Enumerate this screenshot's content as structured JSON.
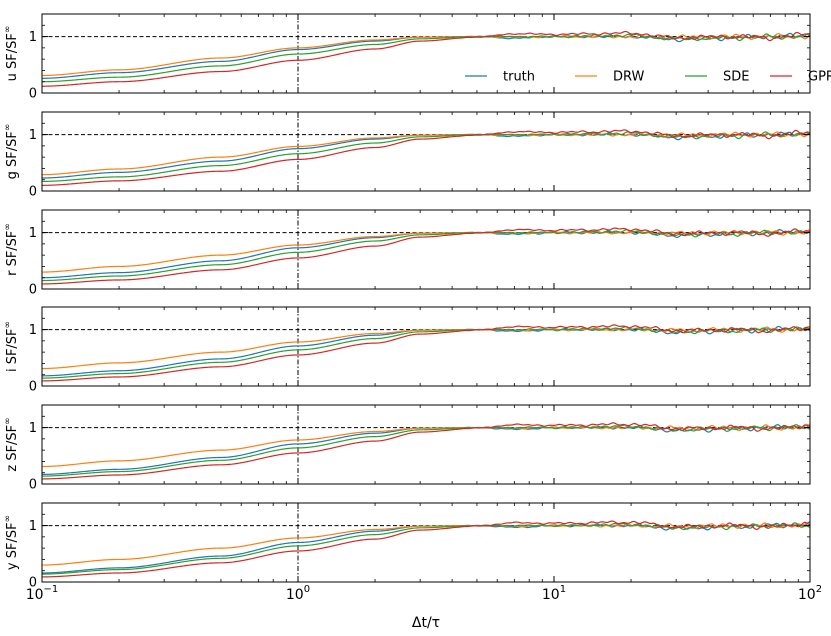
{
  "figure": {
    "xlabel": "Δt/τ",
    "x_tick_labels": [
      {
        "base": "10",
        "exp": "−1"
      },
      {
        "base": "10",
        "exp": "0"
      },
      {
        "base": "10",
        "exp": "1"
      },
      {
        "base": "10",
        "exp": "2"
      }
    ],
    "y_tick_labels": [
      "0",
      "1"
    ],
    "legend": [
      "truth",
      "DRW",
      "SDE",
      "GPR"
    ]
  },
  "chart_data": {
    "type": "line",
    "x_scale": "log",
    "xlim": [
      0.1,
      100
    ],
    "ylim": [
      0,
      1.4
    ],
    "reference_lines": {
      "horizontal_y": 1,
      "vertical_x": 1
    },
    "xlabel": "Δt/τ",
    "legend_location": "right",
    "colors": {
      "truth": "#1f77b4",
      "DRW": "#ff7f0e",
      "SDE": "#2ca02c",
      "GPR": "#d62728"
    },
    "panels": [
      {
        "band": "u",
        "ylabel": "u SF/SF∞",
        "series": [
          {
            "name": "truth",
            "x": [
              0.1,
              0.2,
              0.5,
              1,
              2,
              3,
              5,
              7,
              10,
              20,
              30,
              50,
              70,
              100
            ],
            "y": [
              0.26,
              0.36,
              0.56,
              0.77,
              0.92,
              0.99,
              1.0,
              0.97,
              1.0,
              1.0,
              0.95,
              0.98,
              1.0,
              1.02
            ]
          },
          {
            "name": "DRW",
            "x": [
              0.1,
              0.2,
              0.5,
              1,
              2,
              3,
              5,
              7,
              10,
              20,
              30,
              50,
              70,
              100
            ],
            "y": [
              0.31,
              0.41,
              0.62,
              0.8,
              0.94,
              0.99,
              1.0,
              0.99,
              1.0,
              1.0,
              0.99,
              1.0,
              1.0,
              1.0
            ]
          },
          {
            "name": "SDE",
            "x": [
              0.1,
              0.2,
              0.5,
              1,
              2,
              3,
              5,
              7,
              10,
              20,
              30,
              50,
              70,
              100
            ],
            "y": [
              0.2,
              0.28,
              0.48,
              0.69,
              0.86,
              0.96,
              1.0,
              1.0,
              1.0,
              1.02,
              0.96,
              0.98,
              1.0,
              1.0
            ]
          },
          {
            "name": "GPR",
            "x": [
              0.1,
              0.2,
              0.5,
              1,
              2,
              3,
              5,
              7,
              10,
              20,
              30,
              50,
              70,
              100
            ],
            "y": [
              0.12,
              0.2,
              0.38,
              0.58,
              0.78,
              0.92,
              0.99,
              1.05,
              1.04,
              1.06,
              0.98,
              1.0,
              0.98,
              1.04
            ]
          }
        ]
      },
      {
        "band": "g",
        "ylabel": "g SF/SF∞",
        "series": [
          {
            "name": "truth",
            "x": [
              0.1,
              0.2,
              0.5,
              1,
              2,
              3,
              5,
              7,
              10,
              20,
              30,
              50,
              70,
              100
            ],
            "y": [
              0.23,
              0.33,
              0.53,
              0.75,
              0.92,
              0.99,
              1.0,
              0.97,
              1.0,
              1.0,
              0.95,
              0.98,
              1.0,
              1.02
            ]
          },
          {
            "name": "DRW",
            "x": [
              0.1,
              0.2,
              0.5,
              1,
              2,
              3,
              5,
              7,
              10,
              20,
              30,
              50,
              70,
              100
            ],
            "y": [
              0.29,
              0.39,
              0.6,
              0.79,
              0.94,
              0.99,
              1.0,
              0.99,
              1.0,
              1.0,
              0.99,
              1.0,
              1.0,
              1.0
            ]
          },
          {
            "name": "SDE",
            "x": [
              0.1,
              0.2,
              0.5,
              1,
              2,
              3,
              5,
              7,
              10,
              20,
              30,
              50,
              70,
              100
            ],
            "y": [
              0.17,
              0.25,
              0.45,
              0.66,
              0.85,
              0.96,
              1.0,
              1.0,
              1.0,
              1.02,
              0.96,
              0.98,
              1.0,
              1.0
            ]
          },
          {
            "name": "GPR",
            "x": [
              0.1,
              0.2,
              0.5,
              1,
              2,
              3,
              5,
              7,
              10,
              20,
              30,
              50,
              70,
              100
            ],
            "y": [
              0.1,
              0.18,
              0.35,
              0.56,
              0.77,
              0.92,
              0.99,
              1.05,
              1.04,
              1.06,
              0.98,
              1.0,
              0.98,
              1.04
            ]
          }
        ]
      },
      {
        "band": "r",
        "ylabel": "r SF/SF∞",
        "series": [
          {
            "name": "truth",
            "x": [
              0.1,
              0.2,
              0.5,
              1,
              2,
              3,
              5,
              7,
              10,
              20,
              30,
              50,
              70,
              100
            ],
            "y": [
              0.2,
              0.29,
              0.5,
              0.73,
              0.91,
              0.99,
              1.0,
              0.97,
              1.0,
              1.0,
              0.95,
              0.98,
              1.0,
              1.02
            ]
          },
          {
            "name": "DRW",
            "x": [
              0.1,
              0.2,
              0.5,
              1,
              2,
              3,
              5,
              7,
              10,
              20,
              30,
              50,
              70,
              100
            ],
            "y": [
              0.3,
              0.4,
              0.6,
              0.78,
              0.93,
              0.99,
              1.0,
              0.99,
              1.0,
              1.0,
              0.99,
              1.0,
              1.0,
              1.0
            ]
          },
          {
            "name": "SDE",
            "x": [
              0.1,
              0.2,
              0.5,
              1,
              2,
              3,
              5,
              7,
              10,
              20,
              30,
              50,
              70,
              100
            ],
            "y": [
              0.15,
              0.23,
              0.43,
              0.65,
              0.85,
              0.96,
              1.0,
              1.0,
              1.0,
              1.02,
              0.96,
              0.98,
              1.0,
              1.0
            ]
          },
          {
            "name": "GPR",
            "x": [
              0.1,
              0.2,
              0.5,
              1,
              2,
              3,
              5,
              7,
              10,
              20,
              30,
              50,
              70,
              100
            ],
            "y": [
              0.09,
              0.16,
              0.34,
              0.55,
              0.76,
              0.92,
              0.99,
              1.05,
              1.04,
              1.06,
              0.98,
              1.0,
              0.98,
              1.04
            ]
          }
        ]
      },
      {
        "band": "i",
        "ylabel": "i SF/SF∞",
        "series": [
          {
            "name": "truth",
            "x": [
              0.1,
              0.2,
              0.5,
              1,
              2,
              3,
              5,
              7,
              10,
              20,
              30,
              50,
              70,
              100
            ],
            "y": [
              0.18,
              0.27,
              0.48,
              0.71,
              0.9,
              0.99,
              1.0,
              0.97,
              1.0,
              1.0,
              0.95,
              0.98,
              1.0,
              1.02
            ]
          },
          {
            "name": "DRW",
            "x": [
              0.1,
              0.2,
              0.5,
              1,
              2,
              3,
              5,
              7,
              10,
              20,
              30,
              50,
              70,
              100
            ],
            "y": [
              0.31,
              0.41,
              0.6,
              0.78,
              0.93,
              0.99,
              1.0,
              0.99,
              1.0,
              1.0,
              0.99,
              1.0,
              1.0,
              1.0
            ]
          },
          {
            "name": "SDE",
            "x": [
              0.1,
              0.2,
              0.5,
              1,
              2,
              3,
              5,
              7,
              10,
              20,
              30,
              50,
              70,
              100
            ],
            "y": [
              0.14,
              0.22,
              0.42,
              0.64,
              0.84,
              0.96,
              1.0,
              1.0,
              1.0,
              1.02,
              0.96,
              0.98,
              1.0,
              1.0
            ]
          },
          {
            "name": "GPR",
            "x": [
              0.1,
              0.2,
              0.5,
              1,
              2,
              3,
              5,
              7,
              10,
              20,
              30,
              50,
              70,
              100
            ],
            "y": [
              0.09,
              0.16,
              0.34,
              0.55,
              0.76,
              0.92,
              0.99,
              1.05,
              1.04,
              1.06,
              0.98,
              1.0,
              0.98,
              1.04
            ]
          }
        ]
      },
      {
        "band": "z",
        "ylabel": "z SF/SF∞",
        "series": [
          {
            "name": "truth",
            "x": [
              0.1,
              0.2,
              0.5,
              1,
              2,
              3,
              5,
              7,
              10,
              20,
              30,
              50,
              70,
              100
            ],
            "y": [
              0.17,
              0.26,
              0.47,
              0.71,
              0.9,
              0.99,
              1.0,
              0.97,
              1.0,
              1.0,
              0.95,
              0.98,
              1.0,
              1.02
            ]
          },
          {
            "name": "DRW",
            "x": [
              0.1,
              0.2,
              0.5,
              1,
              2,
              3,
              5,
              7,
              10,
              20,
              30,
              50,
              70,
              100
            ],
            "y": [
              0.31,
              0.41,
              0.6,
              0.78,
              0.93,
              0.99,
              1.0,
              0.99,
              1.0,
              1.0,
              0.99,
              1.0,
              1.0,
              1.0
            ]
          },
          {
            "name": "SDE",
            "x": [
              0.1,
              0.2,
              0.5,
              1,
              2,
              3,
              5,
              7,
              10,
              20,
              30,
              50,
              70,
              100
            ],
            "y": [
              0.14,
              0.22,
              0.42,
              0.64,
              0.84,
              0.96,
              1.0,
              1.0,
              1.0,
              1.02,
              0.96,
              0.98,
              1.0,
              1.0
            ]
          },
          {
            "name": "GPR",
            "x": [
              0.1,
              0.2,
              0.5,
              1,
              2,
              3,
              5,
              7,
              10,
              20,
              30,
              50,
              70,
              100
            ],
            "y": [
              0.09,
              0.16,
              0.34,
              0.55,
              0.76,
              0.92,
              0.99,
              1.05,
              1.04,
              1.06,
              0.98,
              1.0,
              0.98,
              1.04
            ]
          }
        ]
      },
      {
        "band": "y",
        "ylabel": "y SF/SF∞",
        "series": [
          {
            "name": "truth",
            "x": [
              0.1,
              0.2,
              0.5,
              1,
              2,
              3,
              5,
              7,
              10,
              20,
              30,
              50,
              70,
              100
            ],
            "y": [
              0.16,
              0.25,
              0.46,
              0.7,
              0.9,
              0.99,
              1.0,
              0.97,
              1.0,
              1.0,
              0.95,
              0.98,
              1.0,
              1.02
            ]
          },
          {
            "name": "DRW",
            "x": [
              0.1,
              0.2,
              0.5,
              1,
              2,
              3,
              5,
              7,
              10,
              20,
              30,
              50,
              70,
              100
            ],
            "y": [
              0.3,
              0.4,
              0.6,
              0.78,
              0.93,
              0.99,
              1.0,
              0.99,
              1.0,
              1.0,
              0.99,
              1.0,
              1.0,
              1.0
            ]
          },
          {
            "name": "SDE",
            "x": [
              0.1,
              0.2,
              0.5,
              1,
              2,
              3,
              5,
              7,
              10,
              20,
              30,
              50,
              70,
              100
            ],
            "y": [
              0.14,
              0.22,
              0.42,
              0.64,
              0.84,
              0.96,
              1.0,
              1.0,
              1.0,
              1.02,
              0.96,
              0.98,
              1.0,
              1.0
            ]
          },
          {
            "name": "GPR",
            "x": [
              0.1,
              0.2,
              0.5,
              1,
              2,
              3,
              5,
              7,
              10,
              20,
              30,
              50,
              70,
              100
            ],
            "y": [
              0.09,
              0.16,
              0.34,
              0.55,
              0.76,
              0.92,
              0.99,
              1.05,
              1.04,
              1.06,
              0.98,
              1.0,
              0.98,
              1.04
            ]
          }
        ]
      }
    ]
  }
}
